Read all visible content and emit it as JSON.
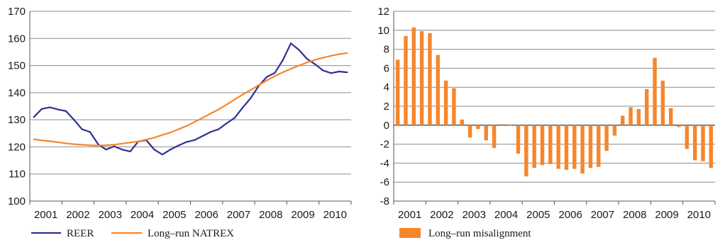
{
  "chart_data": [
    {
      "type": "line",
      "title": "",
      "xlabel": "",
      "ylabel": "",
      "ylim": [
        100,
        170
      ],
      "yticks": [
        100,
        110,
        120,
        130,
        140,
        150,
        160,
        170
      ],
      "year_labels": [
        "2001",
        "2002",
        "2003",
        "2004",
        "2005",
        "2006",
        "2007",
        "2008",
        "2009",
        "2010"
      ],
      "x_quarters": [
        "2001Q1",
        "2001Q2",
        "2001Q3",
        "2001Q4",
        "2002Q1",
        "2002Q2",
        "2002Q3",
        "2002Q4",
        "2003Q1",
        "2003Q2",
        "2003Q3",
        "2003Q4",
        "2004Q1",
        "2004Q2",
        "2004Q3",
        "2004Q4",
        "2005Q1",
        "2005Q2",
        "2005Q3",
        "2005Q4",
        "2006Q1",
        "2006Q2",
        "2006Q3",
        "2006Q4",
        "2007Q1",
        "2007Q2",
        "2007Q3",
        "2007Q4",
        "2008Q1",
        "2008Q2",
        "2008Q3",
        "2008Q4",
        "2009Q1",
        "2009Q2",
        "2009Q3",
        "2009Q4",
        "2010Q1",
        "2010Q2",
        "2010Q3",
        "2010Q4"
      ],
      "grid": true,
      "legend": "bottom",
      "series": [
        {
          "name": "REER",
          "color": "#2e3192",
          "values": [
            131.0,
            134.0,
            134.6,
            133.8,
            133.2,
            130.0,
            126.5,
            125.5,
            121.0,
            119.0,
            120.2,
            119.0,
            118.3,
            122.0,
            122.5,
            119.0,
            117.2,
            119.0,
            120.5,
            121.8,
            122.5,
            124.0,
            125.5,
            126.5,
            128.7,
            130.7,
            134.5,
            138.0,
            142.5,
            145.8,
            147.3,
            152.0,
            158.2,
            155.8,
            152.5,
            150.5,
            148.2,
            147.2,
            147.8,
            147.5
          ]
        },
        {
          "name": "Long–run NATREX",
          "color": "#f7862b",
          "values": [
            122.8,
            122.4,
            122.1,
            121.7,
            121.3,
            121.0,
            120.8,
            120.6,
            120.5,
            120.6,
            120.8,
            121.2,
            121.6,
            122.0,
            122.7,
            123.4,
            124.4,
            125.3,
            126.5,
            127.7,
            129.2,
            130.7,
            132.3,
            133.8,
            135.6,
            137.5,
            139.3,
            141.0,
            142.8,
            144.5,
            146.1,
            147.5,
            148.8,
            150.0,
            151.1,
            152.1,
            152.9,
            153.6,
            154.2,
            154.6
          ]
        }
      ]
    },
    {
      "type": "bar",
      "title": "",
      "xlabel": "",
      "ylabel": "",
      "ylim": [
        -8,
        12
      ],
      "yticks": [
        -8,
        -6,
        -4,
        -2,
        0,
        2,
        4,
        6,
        8,
        10,
        12
      ],
      "year_labels": [
        "2001",
        "2002",
        "2003",
        "2004",
        "2005",
        "2006",
        "2007",
        "2008",
        "2009",
        "2010"
      ],
      "x_quarters": [
        "2001Q1",
        "2001Q2",
        "2001Q3",
        "2001Q4",
        "2002Q1",
        "2002Q2",
        "2002Q3",
        "2002Q4",
        "2003Q1",
        "2003Q2",
        "2003Q3",
        "2003Q4",
        "2004Q1",
        "2004Q2",
        "2004Q3",
        "2004Q4",
        "2005Q1",
        "2005Q2",
        "2005Q3",
        "2005Q4",
        "2006Q1",
        "2006Q2",
        "2006Q3",
        "2006Q4",
        "2007Q1",
        "2007Q2",
        "2007Q3",
        "2007Q4",
        "2008Q1",
        "2008Q2",
        "2008Q3",
        "2008Q4",
        "2009Q1",
        "2009Q2",
        "2009Q3",
        "2009Q4",
        "2010Q1",
        "2010Q2",
        "2010Q3",
        "2010Q4"
      ],
      "grid": true,
      "legend": "bottom",
      "series": [
        {
          "name": "Long–run misalignment",
          "color": "#f7862b",
          "values": [
            6.9,
            9.4,
            10.3,
            9.9,
            9.7,
            7.4,
            4.7,
            3.9,
            0.6,
            -1.3,
            -0.4,
            -1.6,
            -2.4,
            0.1,
            0.0,
            -3.0,
            -5.4,
            -4.5,
            -4.2,
            -4.1,
            -4.6,
            -4.7,
            -4.6,
            -5.1,
            -4.5,
            -4.4,
            -2.7,
            -1.1,
            1.0,
            1.9,
            1.7,
            3.8,
            7.1,
            4.7,
            1.8,
            -0.2,
            -2.5,
            -3.7,
            -3.8,
            -4.5
          ]
        }
      ]
    }
  ]
}
